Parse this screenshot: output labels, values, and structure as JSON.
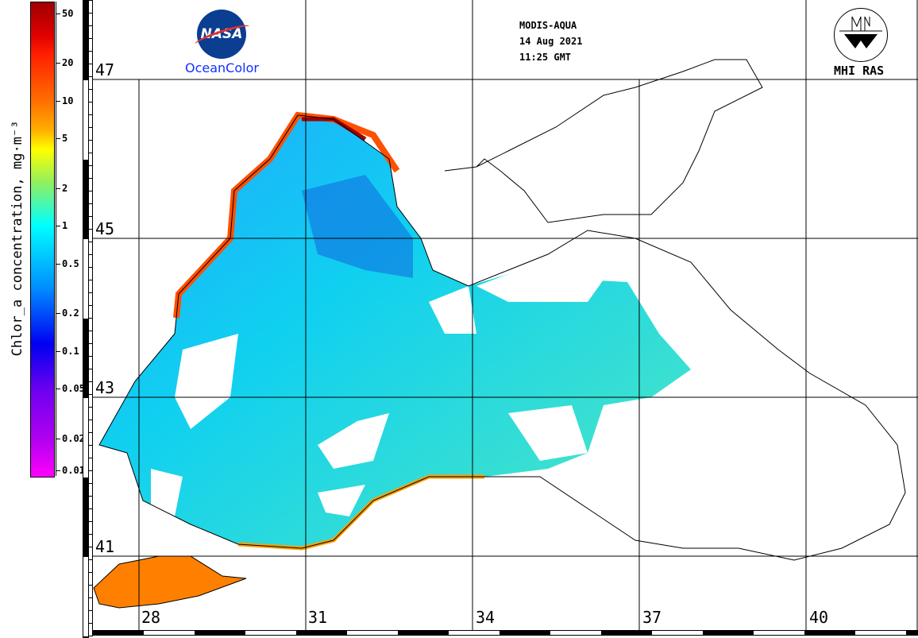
{
  "header": {
    "sensor": "MODIS-AQUA",
    "date": "14 Aug 2021",
    "time": "11:25 GMT"
  },
  "logos": {
    "nasa_text": "NASA",
    "oceancolor": "OceanColor",
    "mhi": "MHI RAS"
  },
  "colorbar": {
    "title": "Chlor_a concentration, mg·m⁻³",
    "range": [
      0.01,
      62
    ],
    "ticks": [
      "50",
      "20",
      "10",
      "5",
      "2",
      "1",
      "0.5",
      "0.2",
      "0.1",
      "0.05",
      "0.02",
      "0.01"
    ]
  },
  "grid": {
    "latitudes": [
      "47",
      "45",
      "43",
      "41"
    ],
    "longitudes": [
      "28",
      "31",
      "34",
      "37",
      "40"
    ]
  },
  "colors": {
    "land": "#ffffff",
    "coast": "#000000",
    "low": "#00c8ff",
    "mid": "#40e0e0",
    "high": "#ff6000",
    "very_high": "#a00000"
  }
}
